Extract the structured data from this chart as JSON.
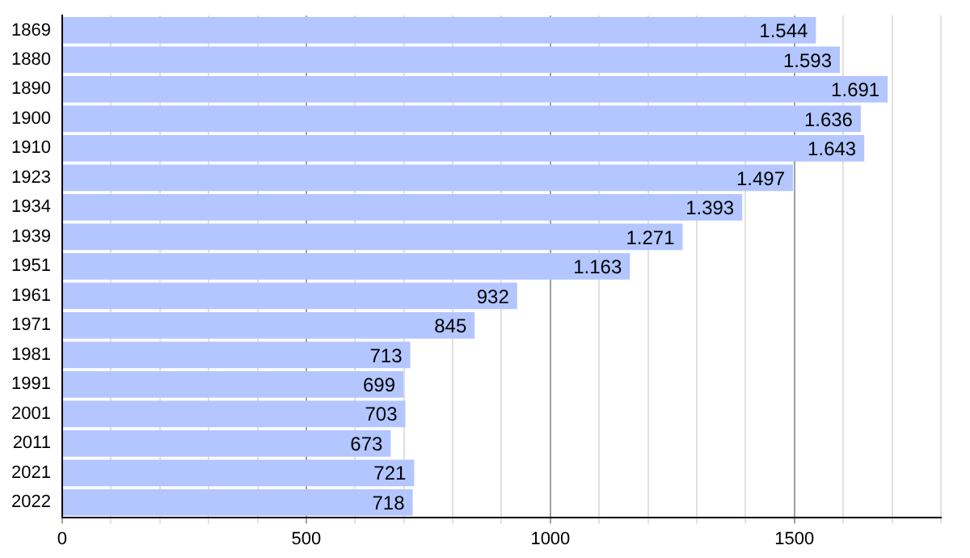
{
  "chart_data": {
    "type": "bar",
    "orientation": "horizontal",
    "categories": [
      "1869",
      "1880",
      "1890",
      "1900",
      "1910",
      "1923",
      "1934",
      "1939",
      "1951",
      "1961",
      "1971",
      "1981",
      "1991",
      "2001",
      "2011",
      "2021",
      "2022"
    ],
    "values": [
      1544,
      1593,
      1691,
      1636,
      1643,
      1497,
      1393,
      1271,
      1163,
      932,
      845,
      713,
      699,
      703,
      673,
      721,
      718
    ],
    "value_labels": [
      "1.544",
      "1.593",
      "1.691",
      "1.636",
      "1.643",
      "1.497",
      "1.393",
      "1.271",
      "1.163",
      "932",
      "845",
      "713",
      "699",
      "703",
      "673",
      "721",
      "718"
    ],
    "color": "#b3c6ff",
    "xlim": [
      0,
      1800
    ],
    "xticks": [
      0,
      {
        "value": 100,
        "label": null
      },
      {
        "value": 200,
        "label": null
      },
      {
        "value": 300,
        "label": null
      },
      {
        "value": 400,
        "label": null
      },
      500,
      {
        "value": 600,
        "label": null
      },
      {
        "value": 700,
        "label": null
      },
      {
        "value": 800,
        "label": null
      },
      {
        "value": 900,
        "label": null
      },
      1000,
      {
        "value": 1100,
        "label": null
      },
      {
        "value": 1200,
        "label": null
      },
      {
        "value": 1300,
        "label": null
      },
      {
        "value": 1400,
        "label": null
      },
      1500,
      {
        "value": 1600,
        "label": null
      },
      {
        "value": 1700,
        "label": null
      },
      {
        "value": 1800,
        "label": null
      }
    ],
    "grid": "x",
    "legend": false
  }
}
